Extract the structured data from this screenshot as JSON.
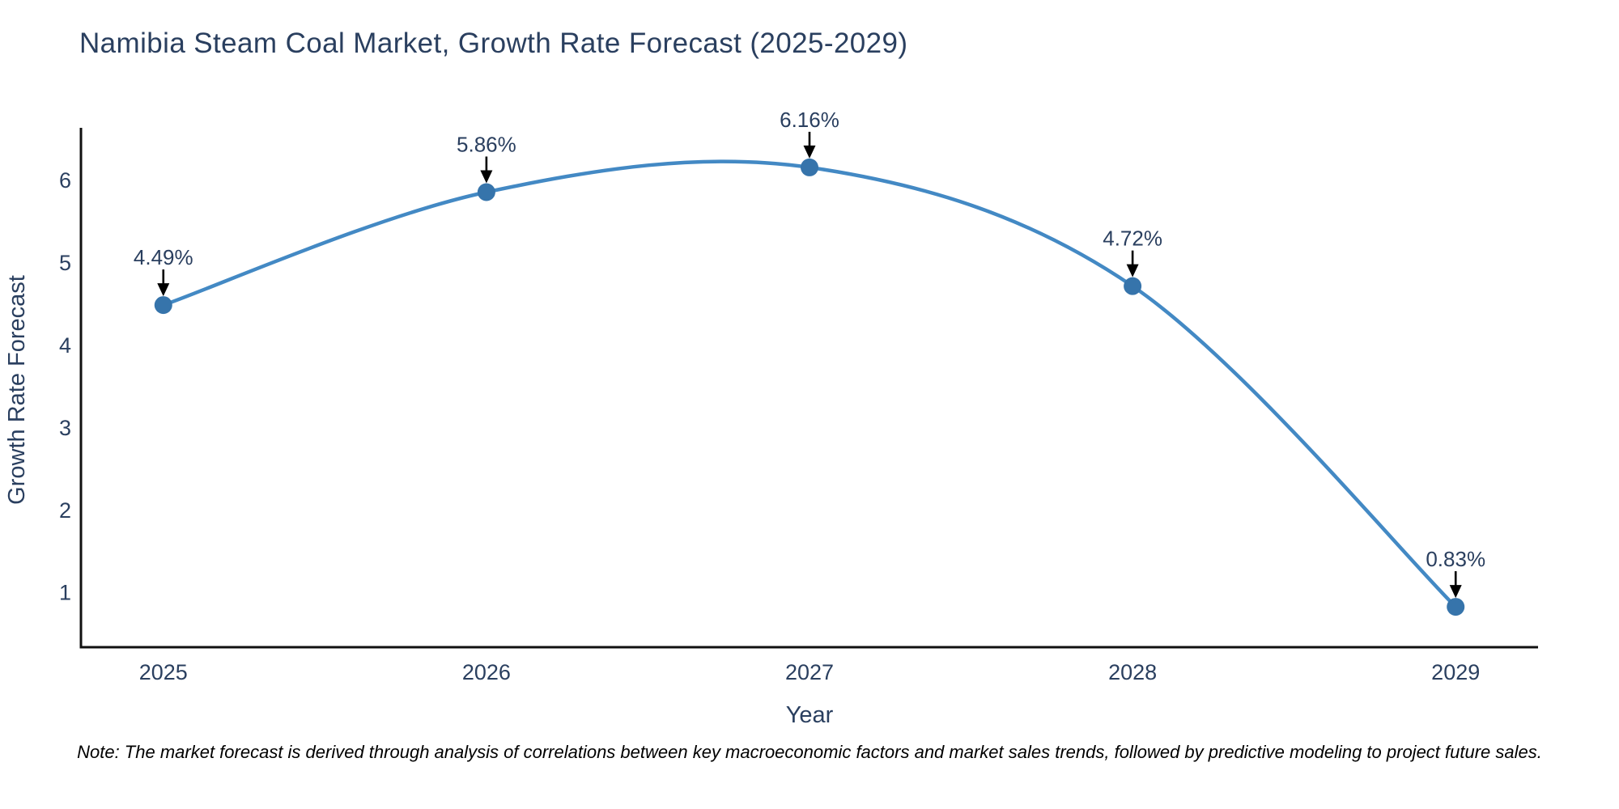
{
  "chart_data": {
    "type": "line",
    "title": "Namibia Steam Coal Market, Growth Rate Forecast (2025-2029)",
    "xlabel": "Year",
    "ylabel": "Growth Rate Forecast",
    "x": [
      2025,
      2026,
      2027,
      2028,
      2029
    ],
    "series": [
      {
        "name": "Growth Rate Forecast",
        "values": [
          4.49,
          5.86,
          6.16,
          4.72,
          0.83
        ]
      }
    ],
    "point_labels": [
      "4.49%",
      "5.86%",
      "6.16%",
      "4.72%",
      "0.83%"
    ],
    "yticks": [
      1,
      2,
      3,
      4,
      5,
      6
    ],
    "xlim": [
      2024.745,
      2029.255
    ],
    "ylim": [
      0.34,
      6.64
    ],
    "line_shape": "spline",
    "grid": false,
    "legend": false,
    "colors": {
      "line": "#4389c4",
      "marker": "#3674ab",
      "axis_line": "#111111",
      "text": "#2a3f5f",
      "arrow": "#000000",
      "note": "#000000",
      "background": "#ffffff"
    }
  },
  "note": "Note: The market forecast is derived through analysis of correlations between key macroeconomic factors and market sales trends, followed by predictive modeling to project future sales."
}
